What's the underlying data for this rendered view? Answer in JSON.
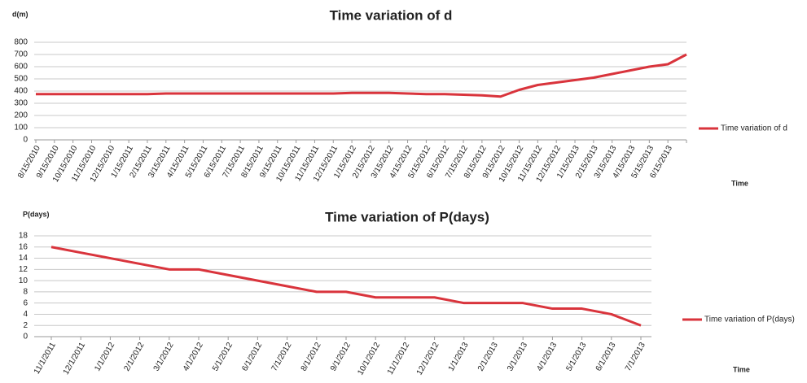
{
  "chart_data": [
    {
      "type": "line",
      "title": "Time variation of d",
      "y_label": "d(m)",
      "x_label": "Time",
      "categories": [
        "8/15/2010",
        "9/15/2010",
        "10/15/2010",
        "11/15/2010",
        "12/15/2010",
        "1/15/2011",
        "2/15/2011",
        "3/15/2011",
        "4/15/2011",
        "5/15/2011",
        "6/15/2011",
        "7/15/2011",
        "8/15/2011",
        "9/15/2011",
        "10/15/2011",
        "11/15/2011",
        "12/15/2011",
        "1/15/2012",
        "2/15/2012",
        "3/15/2012",
        "4/15/2012",
        "5/15/2012",
        "6/15/2012",
        "7/15/2012",
        "8/15/2012",
        "9/15/2012",
        "10/15/2012",
        "11/15/2012",
        "12/15/2012",
        "1/15/2013",
        "2/15/2013",
        "3/15/2013",
        "4/15/2013",
        "5/15/2013",
        "6/15/2013",
        null
      ],
      "series": [
        {
          "name": "Time variation of d",
          "color": "#d9343c",
          "values": [
            375,
            375,
            375,
            375,
            375,
            375,
            375,
            380,
            380,
            380,
            380,
            380,
            380,
            380,
            380,
            380,
            380,
            385,
            385,
            385,
            380,
            375,
            375,
            370,
            365,
            355,
            410,
            450,
            470,
            490,
            510,
            540,
            570,
            600,
            620,
            700
          ]
        }
      ],
      "ylim": [
        0,
        800
      ],
      "yticks": [
        0,
        100,
        200,
        300,
        400,
        500,
        600,
        700,
        800
      ],
      "grid": true,
      "legend": "right"
    },
    {
      "type": "line",
      "title": "Time variation of P(days)",
      "y_label": "P(days)",
      "x_label": "Time",
      "categories": [
        "11/1/2011",
        "12/1/2011",
        "1/1/2012",
        "2/1/2012",
        "3/1/2012",
        "4/1/2012",
        "5/1/2012",
        "6/1/2012",
        "7/1/2012",
        "8/1/2012",
        "9/1/2012",
        "10/1/2012",
        "11/1/2012",
        "12/1/2012",
        "1/1/2013",
        "2/1/2013",
        "3/1/2013",
        "4/1/2013",
        "5/1/2013",
        "6/1/2013",
        "7/1/2013"
      ],
      "series": [
        {
          "name": "Time variation of P(days)",
          "color": "#d9343c",
          "values": [
            16,
            15,
            14,
            13,
            12,
            12,
            11,
            10,
            9,
            8,
            8,
            7,
            7,
            7,
            6,
            6,
            6,
            5,
            5,
            4,
            2
          ]
        }
      ],
      "ylim": [
        0,
        18
      ],
      "yticks": [
        0,
        2,
        4,
        6,
        8,
        10,
        12,
        14,
        16,
        18
      ],
      "grid": true,
      "legend": "right"
    }
  ]
}
